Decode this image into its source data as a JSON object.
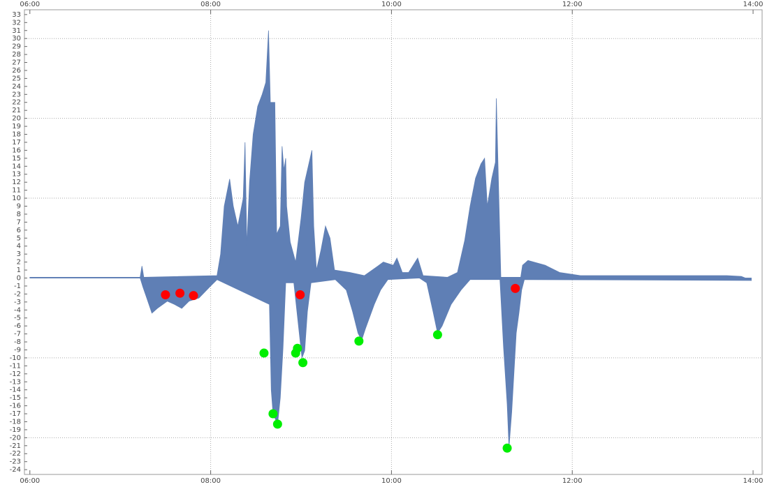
{
  "chart_data": {
    "type": "area",
    "xlim": [
      5.94,
      14.1
    ],
    "ylim": [
      -24.6,
      33.6
    ],
    "xticks": [
      {
        "value": 6,
        "label": "06:00"
      },
      {
        "value": 8,
        "label": "08:00"
      },
      {
        "value": 10,
        "label": "10:00"
      },
      {
        "value": 12,
        "label": "12:00"
      },
      {
        "value": 14,
        "label": "14:00"
      }
    ],
    "yticks": [
      -24,
      -23,
      -22,
      -21,
      -20,
      -19,
      -18,
      -17,
      -16,
      -15,
      -14,
      -13,
      -12,
      -11,
      -10,
      -9,
      -8,
      -7,
      -6,
      -5,
      -4,
      -3,
      -2,
      -1,
      0,
      1,
      2,
      3,
      4,
      5,
      6,
      7,
      8,
      9,
      10,
      11,
      12,
      13,
      14,
      15,
      16,
      17,
      18,
      19,
      20,
      21,
      22,
      23,
      24,
      25,
      26,
      27,
      28,
      29,
      30,
      31,
      32,
      33
    ],
    "xgrid": [
      8,
      10,
      12
    ],
    "ygrid": [
      -20,
      -10,
      10,
      20,
      30
    ],
    "series": [
      {
        "type": "area",
        "color": "#5f7fb5",
        "x": [
          6.0,
          7.22,
          7.24,
          7.26,
          8.07,
          8.11,
          8.15,
          8.21,
          8.25,
          8.3,
          8.36,
          8.38,
          8.4,
          8.43,
          8.47,
          8.52,
          8.57,
          8.61,
          8.64,
          8.66,
          8.71,
          8.73,
          8.77,
          8.79,
          8.81,
          8.83,
          8.84,
          8.88,
          8.94,
          9.0,
          9.04,
          9.08,
          9.12,
          9.14,
          9.17,
          9.22,
          9.27,
          9.32,
          9.37,
          9.54,
          9.7,
          9.85,
          9.91,
          10.02,
          10.06,
          10.12,
          10.19,
          10.29,
          10.35,
          10.62,
          10.73,
          10.81,
          10.87,
          10.93,
          10.99,
          11.03,
          11.06,
          11.11,
          11.15,
          11.16,
          11.18,
          11.21,
          11.43,
          11.45,
          11.51,
          11.7,
          11.86,
          12.09,
          13.71,
          13.87,
          13.98
        ],
        "values": [
          0.1,
          0.1,
          1.5,
          0.1,
          0.3,
          3.0,
          9.0,
          12.4,
          9.0,
          6.5,
          10.0,
          17.0,
          4.0,
          12.0,
          18.0,
          21.5,
          23.0,
          24.5,
          31.0,
          22.0,
          22.0,
          5.5,
          6.5,
          16.5,
          13.5,
          15.0,
          9.0,
          4.5,
          2.0,
          7.5,
          12.0,
          14.0,
          16.0,
          6.5,
          1.0,
          3.5,
          6.5,
          5.0,
          1.0,
          0.7,
          0.3,
          1.5,
          2.0,
          1.6,
          2.5,
          0.7,
          0.7,
          2.5,
          0.3,
          0.1,
          0.7,
          4.7,
          9.0,
          12.5,
          14.3,
          15.0,
          9.0,
          12.5,
          14.5,
          22.5,
          13.5,
          0.1,
          0.1,
          1.6,
          2.2,
          1.6,
          0.7,
          0.3,
          0.3,
          0.2,
          -0.3
        ]
      },
      {
        "type": "area",
        "color": "#5f7fb5",
        "x": [
          6.0,
          7.22,
          7.25,
          7.29,
          7.35,
          7.41,
          7.52,
          7.6,
          7.68,
          7.76,
          7.87,
          7.99,
          8.07,
          8.65,
          8.67,
          8.69,
          8.74,
          8.77,
          8.8,
          8.83,
          8.92,
          8.98,
          9.01,
          9.04,
          9.07,
          9.11,
          9.38,
          9.5,
          9.57,
          9.63,
          9.67,
          9.71,
          9.81,
          9.88,
          9.96,
          10.31,
          10.39,
          10.46,
          10.51,
          10.56,
          10.66,
          10.77,
          10.87,
          11.2,
          11.24,
          11.28,
          11.3,
          11.33,
          11.38,
          11.41,
          11.44,
          11.47,
          13.98
        ],
        "values": [
          0,
          0,
          -1.1,
          -2.4,
          -4.4,
          -3.8,
          -2.9,
          -3.3,
          -3.8,
          -2.9,
          -2.5,
          -1.1,
          -0.2,
          -3.3,
          -14.0,
          -17.0,
          -18.3,
          -15.0,
          -8.8,
          -0.6,
          -0.6,
          -6.9,
          -10.0,
          -9.1,
          -4.2,
          -0.6,
          -0.2,
          -1.5,
          -4.2,
          -6.9,
          -7.8,
          -6.4,
          -3.3,
          -1.5,
          -0.2,
          0,
          -0.6,
          -4.2,
          -6.9,
          -6.0,
          -3.3,
          -1.5,
          -0.2,
          -0.2,
          -8.7,
          -15.8,
          -21.2,
          -16.8,
          -6.9,
          -4.4,
          -1.5,
          -0.2,
          -0.3
        ]
      },
      {
        "type": "scatter",
        "color": "#ff0000",
        "x": [
          7.5,
          7.66,
          7.81,
          8.99,
          11.37
        ],
        "values": [
          -2.1,
          -1.9,
          -2.2,
          -2.1,
          -1.3
        ]
      },
      {
        "type": "scatter",
        "color": "#00ee00",
        "x": [
          8.59,
          8.69,
          8.74,
          8.94,
          8.96,
          9.02,
          9.64,
          10.51,
          11.28
        ],
        "values": [
          -9.4,
          -17.0,
          -18.3,
          -9.4,
          -8.8,
          -10.6,
          -7.9,
          -7.1,
          -21.3
        ]
      }
    ]
  }
}
